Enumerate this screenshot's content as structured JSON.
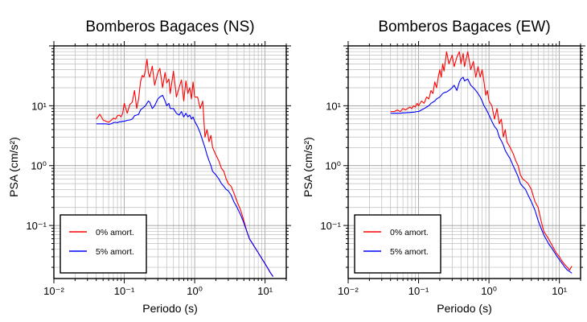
{
  "chart_data": [
    {
      "type": "line",
      "title": "Bomberos Bagaces (NS)",
      "xlabel": "Periodo (s)",
      "ylabel": "PSA (cm/s²)",
      "xscale": "log",
      "yscale": "log",
      "xlim": [
        0.01,
        20
      ],
      "ylim": [
        0.013,
        100
      ],
      "xticks": [
        {
          "value": 0.01,
          "label": "10⁻²"
        },
        {
          "value": 0.1,
          "label": "10⁻¹"
        },
        {
          "value": 1,
          "label": "10⁰"
        },
        {
          "value": 10,
          "label": "10¹"
        }
      ],
      "yticks": [
        {
          "value": 0.1,
          "label": "10⁻¹"
        },
        {
          "value": 1,
          "label": "10⁰"
        },
        {
          "value": 10,
          "label": "10¹"
        }
      ],
      "grid": true,
      "legend_position": "bottom-left",
      "series": [
        {
          "name": "0% amort.",
          "color": "#ff0000",
          "x": [
            0.04,
            0.045,
            0.05,
            0.055,
            0.06,
            0.065,
            0.07,
            0.075,
            0.08,
            0.085,
            0.09,
            0.095,
            0.1,
            0.11,
            0.12,
            0.13,
            0.14,
            0.15,
            0.16,
            0.17,
            0.18,
            0.19,
            0.2,
            0.21,
            0.22,
            0.23,
            0.25,
            0.27,
            0.3,
            0.32,
            0.35,
            0.38,
            0.4,
            0.43,
            0.45,
            0.5,
            0.55,
            0.6,
            0.65,
            0.7,
            0.75,
            0.8,
            0.85,
            0.9,
            0.95,
            1.0,
            1.1,
            1.2,
            1.3,
            1.4,
            1.5,
            1.6,
            1.7,
            1.8,
            2.0,
            2.2,
            2.4,
            2.6,
            2.8,
            3.0,
            3.3,
            3.6,
            4.0,
            4.5,
            5.0,
            5.5,
            6.0,
            7.0,
            8.0,
            9.0,
            10.0,
            11.0,
            12.0,
            13.0
          ],
          "y": [
            6.0,
            7.2,
            5.8,
            5.5,
            5.3,
            5.7,
            6.2,
            6.0,
            6.8,
            7.0,
            6.5,
            7.5,
            11.0,
            7.5,
            10.5,
            11.5,
            18.0,
            9.0,
            13.0,
            25.0,
            32.0,
            30.0,
            40.0,
            60.0,
            36.0,
            30.0,
            46.0,
            22.0,
            36.0,
            42.0,
            20.0,
            36.0,
            24.0,
            28.0,
            16.0,
            38.0,
            14.0,
            20.0,
            27.0,
            12.0,
            26.0,
            16.0,
            20.0,
            13.0,
            25.0,
            14.0,
            14.0,
            9.0,
            12.0,
            3.0,
            4.0,
            2.5,
            3.2,
            2.0,
            1.5,
            1.2,
            0.9,
            0.8,
            0.6,
            0.5,
            0.45,
            0.35,
            0.25,
            0.18,
            0.12,
            0.08,
            0.06,
            0.045,
            0.035,
            0.028,
            0.023,
            0.019,
            0.016,
            0.014
          ]
        },
        {
          "name": "5% amort.",
          "color": "#0000ff",
          "x": [
            0.04,
            0.045,
            0.05,
            0.055,
            0.06,
            0.065,
            0.07,
            0.075,
            0.08,
            0.085,
            0.09,
            0.095,
            0.1,
            0.11,
            0.12,
            0.13,
            0.14,
            0.15,
            0.16,
            0.17,
            0.18,
            0.19,
            0.2,
            0.21,
            0.22,
            0.23,
            0.25,
            0.27,
            0.3,
            0.32,
            0.35,
            0.38,
            0.4,
            0.43,
            0.45,
            0.5,
            0.55,
            0.6,
            0.65,
            0.7,
            0.75,
            0.8,
            0.85,
            0.9,
            0.95,
            1.0,
            1.1,
            1.2,
            1.3,
            1.4,
            1.5,
            1.6,
            1.7,
            1.8,
            2.0,
            2.2,
            2.4,
            2.6,
            2.8,
            3.0,
            3.3,
            3.6,
            4.0,
            4.5,
            5.0,
            5.5,
            6.0,
            7.0,
            8.0,
            9.0,
            10.0,
            11.0,
            12.0,
            13.0
          ],
          "y": [
            5.0,
            5.0,
            5.0,
            5.0,
            4.9,
            5.0,
            5.2,
            5.3,
            5.2,
            5.4,
            5.4,
            5.5,
            5.5,
            5.7,
            5.8,
            6.0,
            6.8,
            7.0,
            7.2,
            8.5,
            9.0,
            9.5,
            10.0,
            11.0,
            12.0,
            11.5,
            9.0,
            10.0,
            13.0,
            14.0,
            15.0,
            12.0,
            10.0,
            11.0,
            9.0,
            9.0,
            7.5,
            7.0,
            8.0,
            6.5,
            7.5,
            6.5,
            7.0,
            6.0,
            6.5,
            5.5,
            4.5,
            3.5,
            2.6,
            2.0,
            1.5,
            1.2,
            1.0,
            0.8,
            0.7,
            0.6,
            0.5,
            0.45,
            0.4,
            0.38,
            0.32,
            0.25,
            0.2,
            0.15,
            0.11,
            0.08,
            0.06,
            0.045,
            0.035,
            0.028,
            0.023,
            0.019,
            0.016,
            0.014
          ]
        }
      ]
    },
    {
      "type": "line",
      "title": "Bomberos Bagaces (EW)",
      "xlabel": "Periodo (s)",
      "ylabel": "PSA (cm/s²)",
      "xscale": "log",
      "yscale": "log",
      "xlim": [
        0.01,
        20
      ],
      "ylim": [
        0.013,
        100
      ],
      "xticks": [
        {
          "value": 0.01,
          "label": "10⁻²"
        },
        {
          "value": 0.1,
          "label": "10⁻¹"
        },
        {
          "value": 1,
          "label": "10⁰"
        },
        {
          "value": 10,
          "label": "10¹"
        }
      ],
      "yticks": [
        {
          "value": 0.1,
          "label": "10⁻¹"
        },
        {
          "value": 1,
          "label": "10⁰"
        },
        {
          "value": 10,
          "label": "10¹"
        }
      ],
      "grid": true,
      "legend_position": "bottom-left",
      "series": [
        {
          "name": "0% amort.",
          "color": "#ff0000",
          "x": [
            0.04,
            0.045,
            0.05,
            0.055,
            0.06,
            0.065,
            0.07,
            0.075,
            0.08,
            0.085,
            0.09,
            0.095,
            0.1,
            0.11,
            0.12,
            0.13,
            0.14,
            0.15,
            0.16,
            0.17,
            0.18,
            0.19,
            0.2,
            0.21,
            0.22,
            0.23,
            0.25,
            0.27,
            0.3,
            0.32,
            0.35,
            0.38,
            0.4,
            0.43,
            0.45,
            0.5,
            0.55,
            0.6,
            0.65,
            0.7,
            0.75,
            0.8,
            0.85,
            0.9,
            0.95,
            1.0,
            1.1,
            1.2,
            1.3,
            1.4,
            1.5,
            1.6,
            1.7,
            1.8,
            2.0,
            2.2,
            2.4,
            2.6,
            2.8,
            3.0,
            3.3,
            3.6,
            4.0,
            4.5,
            5.0,
            5.5,
            6.0,
            7.0,
            8.0,
            9.0,
            10.0,
            11.0,
            12.0,
            13.0,
            14.0,
            15.0
          ],
          "y": [
            8.0,
            8.0,
            8.5,
            8.0,
            9.0,
            8.5,
            9.0,
            9.5,
            9.0,
            10.0,
            9.5,
            11.0,
            10.0,
            12.0,
            11.0,
            14.0,
            13.0,
            18.0,
            16.0,
            25.0,
            20.0,
            30.0,
            40.0,
            30.0,
            50.0,
            38.0,
            80.0,
            50.0,
            70.0,
            45.0,
            65.0,
            80.0,
            50.0,
            75.0,
            45.0,
            80.0,
            40.0,
            55.0,
            30.0,
            45.0,
            30.0,
            40.0,
            25.0,
            15.0,
            18.0,
            12.0,
            10.0,
            6.0,
            9.0,
            5.0,
            6.0,
            3.0,
            4.0,
            2.5,
            2.0,
            1.6,
            1.2,
            1.0,
            0.7,
            0.6,
            0.55,
            0.5,
            0.4,
            0.25,
            0.2,
            0.12,
            0.08,
            0.06,
            0.045,
            0.035,
            0.03,
            0.025,
            0.022,
            0.02,
            0.018,
            0.021
          ]
        },
        {
          "name": "5% amort.",
          "color": "#0000ff",
          "x": [
            0.04,
            0.045,
            0.05,
            0.055,
            0.06,
            0.065,
            0.07,
            0.075,
            0.08,
            0.085,
            0.09,
            0.095,
            0.1,
            0.11,
            0.12,
            0.13,
            0.14,
            0.15,
            0.16,
            0.17,
            0.18,
            0.19,
            0.2,
            0.21,
            0.22,
            0.23,
            0.25,
            0.27,
            0.3,
            0.32,
            0.35,
            0.38,
            0.4,
            0.43,
            0.45,
            0.5,
            0.55,
            0.6,
            0.65,
            0.7,
            0.75,
            0.8,
            0.85,
            0.9,
            0.95,
            1.0,
            1.1,
            1.2,
            1.3,
            1.4,
            1.5,
            1.6,
            1.7,
            1.8,
            2.0,
            2.2,
            2.4,
            2.6,
            2.8,
            3.0,
            3.3,
            3.6,
            4.0,
            4.5,
            5.0,
            5.5,
            6.0,
            7.0,
            8.0,
            9.0,
            10.0,
            11.0,
            12.0,
            13.0,
            14.0,
            15.0
          ],
          "y": [
            7.5,
            7.5,
            7.5,
            7.5,
            7.6,
            7.6,
            7.7,
            7.7,
            7.8,
            7.8,
            7.9,
            8.0,
            8.0,
            8.5,
            9.0,
            9.5,
            10.0,
            11.0,
            11.5,
            12.0,
            13.0,
            13.5,
            14.0,
            15.0,
            16.0,
            16.5,
            17.0,
            18.0,
            20.0,
            22.0,
            18.0,
            25.0,
            28.0,
            30.0,
            26.0,
            28.0,
            22.0,
            20.0,
            18.0,
            16.0,
            14.0,
            12.0,
            10.0,
            9.0,
            8.0,
            7.0,
            5.5,
            4.5,
            4.0,
            3.0,
            2.6,
            2.2,
            1.8,
            1.6,
            1.3,
            1.0,
            0.8,
            0.65,
            0.5,
            0.45,
            0.4,
            0.32,
            0.25,
            0.18,
            0.12,
            0.09,
            0.07,
            0.05,
            0.04,
            0.032,
            0.027,
            0.023,
            0.02,
            0.018,
            0.017,
            0.016
          ]
        }
      ]
    }
  ]
}
